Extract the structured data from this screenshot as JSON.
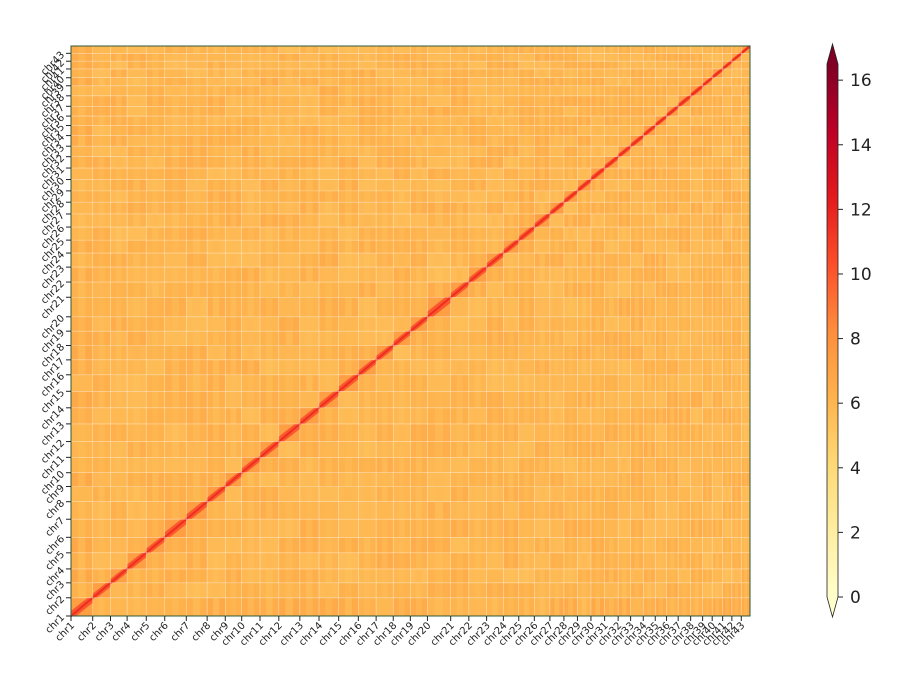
{
  "chart_data": {
    "type": "heatmap",
    "title": "",
    "xlabel": "",
    "ylabel": "",
    "chromosomes": [
      "chr1",
      "chr2",
      "chr3",
      "chr4",
      "chr5",
      "chr6",
      "chr7",
      "chr8",
      "chr9",
      "chr10",
      "chr11",
      "chr12",
      "chr13",
      "chr14",
      "chr15",
      "chr16",
      "chr17",
      "chr18",
      "chr19",
      "chr20",
      "chr21",
      "chr22",
      "chr23",
      "chr24",
      "chr25",
      "chr26",
      "chr27",
      "chr28",
      "chr29",
      "chr30",
      "chr31",
      "chr32",
      "chr33",
      "chr34",
      "chr35",
      "chr36",
      "chr37",
      "chr38",
      "chr39",
      "chr40",
      "chr41",
      "chr42",
      "chr43"
    ],
    "chromosome_relative_sizes": [
      1.27,
      1.04,
      0.97,
      1.12,
      1.08,
      1.26,
      1.22,
      1.06,
      0.96,
      1.07,
      1.1,
      1.23,
      1.12,
      1.15,
      1.15,
      1.04,
      1.0,
      1.0,
      1.0,
      1.36,
      1.06,
      1.04,
      0.98,
      0.9,
      0.91,
      0.91,
      0.82,
      0.79,
      0.79,
      0.8,
      0.79,
      0.73,
      0.74,
      0.7,
      0.66,
      0.68,
      0.73,
      0.7,
      0.56,
      0.61,
      0.54,
      0.55,
      0.51
    ],
    "value_range": [
      0,
      16.5
    ],
    "diagonal_value": 11,
    "background_value": 6,
    "colorbar": {
      "ticks": [
        0,
        2,
        4,
        6,
        8,
        10,
        12,
        14,
        16
      ],
      "colormap": "YlOrRd",
      "extend": "both"
    }
  }
}
